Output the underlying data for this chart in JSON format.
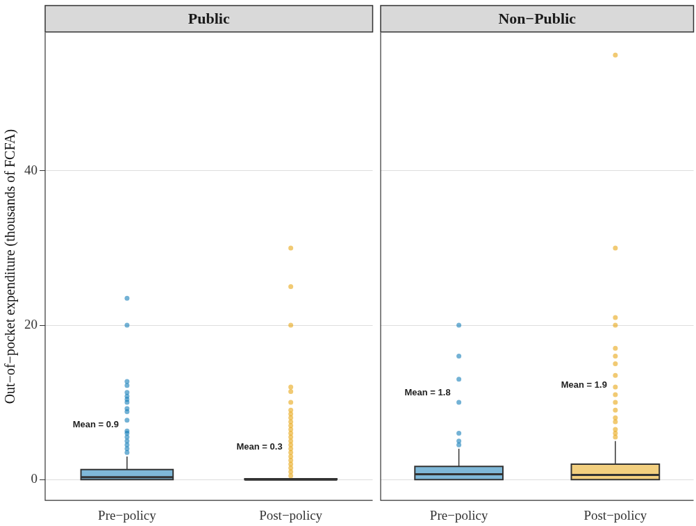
{
  "chart_data": [
    {
      "type": "box",
      "title": "Public",
      "ylabel": "Out−of−pocket expenditure (thousands of FCFA)",
      "categories": [
        "Pre−policy",
        "Post−policy"
      ],
      "colors": [
        "#0072b2",
        "#e69f00"
      ],
      "boxes": [
        {
          "low": 0,
          "q1": 0,
          "median": 0.3,
          "q3": 1.3,
          "high": 3,
          "outliers": [
            23.5,
            20,
            12.7,
            12.2,
            11.3,
            10.8,
            10.4,
            10,
            9.2,
            8.8,
            7.7,
            6.3,
            6,
            5.5,
            5,
            4.5,
            4,
            3.5
          ]
        },
        {
          "low": 0,
          "q1": 0,
          "median": 0,
          "q3": 0.1,
          "high": 0.2,
          "outliers": [
            30,
            25,
            20,
            12,
            11.4,
            10,
            9,
            8.5,
            8,
            7.5,
            7,
            6.5,
            6,
            5.5,
            5,
            4.5,
            4,
            3.5,
            3,
            2.5,
            2,
            1.5,
            1,
            0.5
          ]
        }
      ],
      "annotations": [
        "Mean = 0.9",
        "Mean = 0.3"
      ],
      "ylim": [
        -2.7,
        57.9
      ],
      "yticks": [
        0,
        20,
        40
      ],
      "grid": "y"
    },
    {
      "type": "box",
      "title": "Non−Public",
      "categories": [
        "Pre−policy",
        "Post−policy"
      ],
      "colors": [
        "#0072b2",
        "#e69f00"
      ],
      "boxes": [
        {
          "low": 0,
          "q1": 0,
          "median": 0.7,
          "q3": 1.7,
          "high": 4,
          "outliers": [
            20,
            16,
            13,
            10,
            6,
            5,
            4.5
          ]
        },
        {
          "low": 0,
          "q1": 0,
          "median": 0.6,
          "q3": 2,
          "high": 5,
          "outliers": [
            55,
            30,
            21,
            20,
            17,
            16,
            15,
            13.5,
            12,
            11,
            10,
            9,
            8,
            7.5,
            6.5,
            6,
            5.5
          ]
        }
      ],
      "annotations": [
        "Mean = 1.8",
        "Mean = 1.9"
      ],
      "ylim": [
        -2.7,
        57.9
      ],
      "yticks": [
        0,
        20,
        40
      ],
      "grid": "y",
      "tick_labels": "x"
    }
  ]
}
